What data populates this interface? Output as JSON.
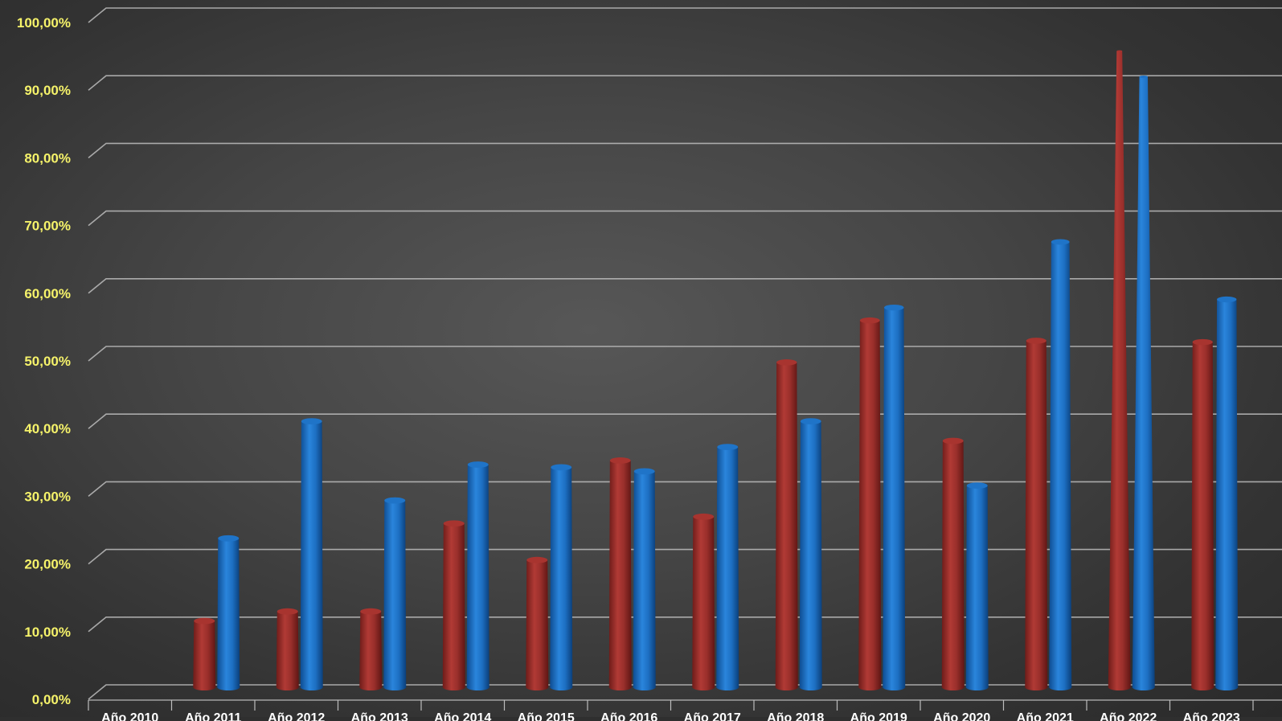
{
  "chart_data": {
    "type": "bar",
    "style": "3d-cone",
    "categories": [
      "Año 2010",
      "Año 2011",
      "Año 2012",
      "Año 2013",
      "Año 2014",
      "Año 2015",
      "Año 2016",
      "Año 2017",
      "Año 2018",
      "Año 2019",
      "Año 2020",
      "Año 2021",
      "Año 2022",
      "Año 2023"
    ],
    "series": [
      {
        "values": [
          0,
          9.8,
          11.2,
          11.2,
          24.2,
          18.8,
          33.5,
          25.2,
          48.0,
          54.2,
          36.4,
          51.2,
          94.0,
          51.0
        ],
        "color": "#a8342f"
      },
      {
        "values": [
          0,
          22.0,
          39.3,
          27.6,
          32.9,
          32.5,
          31.9,
          35.5,
          39.3,
          56.1,
          29.8,
          65.8,
          90.2,
          57.3
        ],
        "color": "#1f74c8"
      }
    ],
    "yticks": [
      "0,00%",
      "10,00%",
      "20,00%",
      "30,00%",
      "40,00%",
      "50,00%",
      "60,00%",
      "70,00%",
      "80,00%",
      "90,00%",
      "100,00%"
    ],
    "ylim": [
      0,
      100
    ],
    "grid": true,
    "legend": "none",
    "colors": {
      "tick_label": "#f6f36a",
      "gridline": "#bdbdbd",
      "category_label": "#ffffff"
    }
  }
}
